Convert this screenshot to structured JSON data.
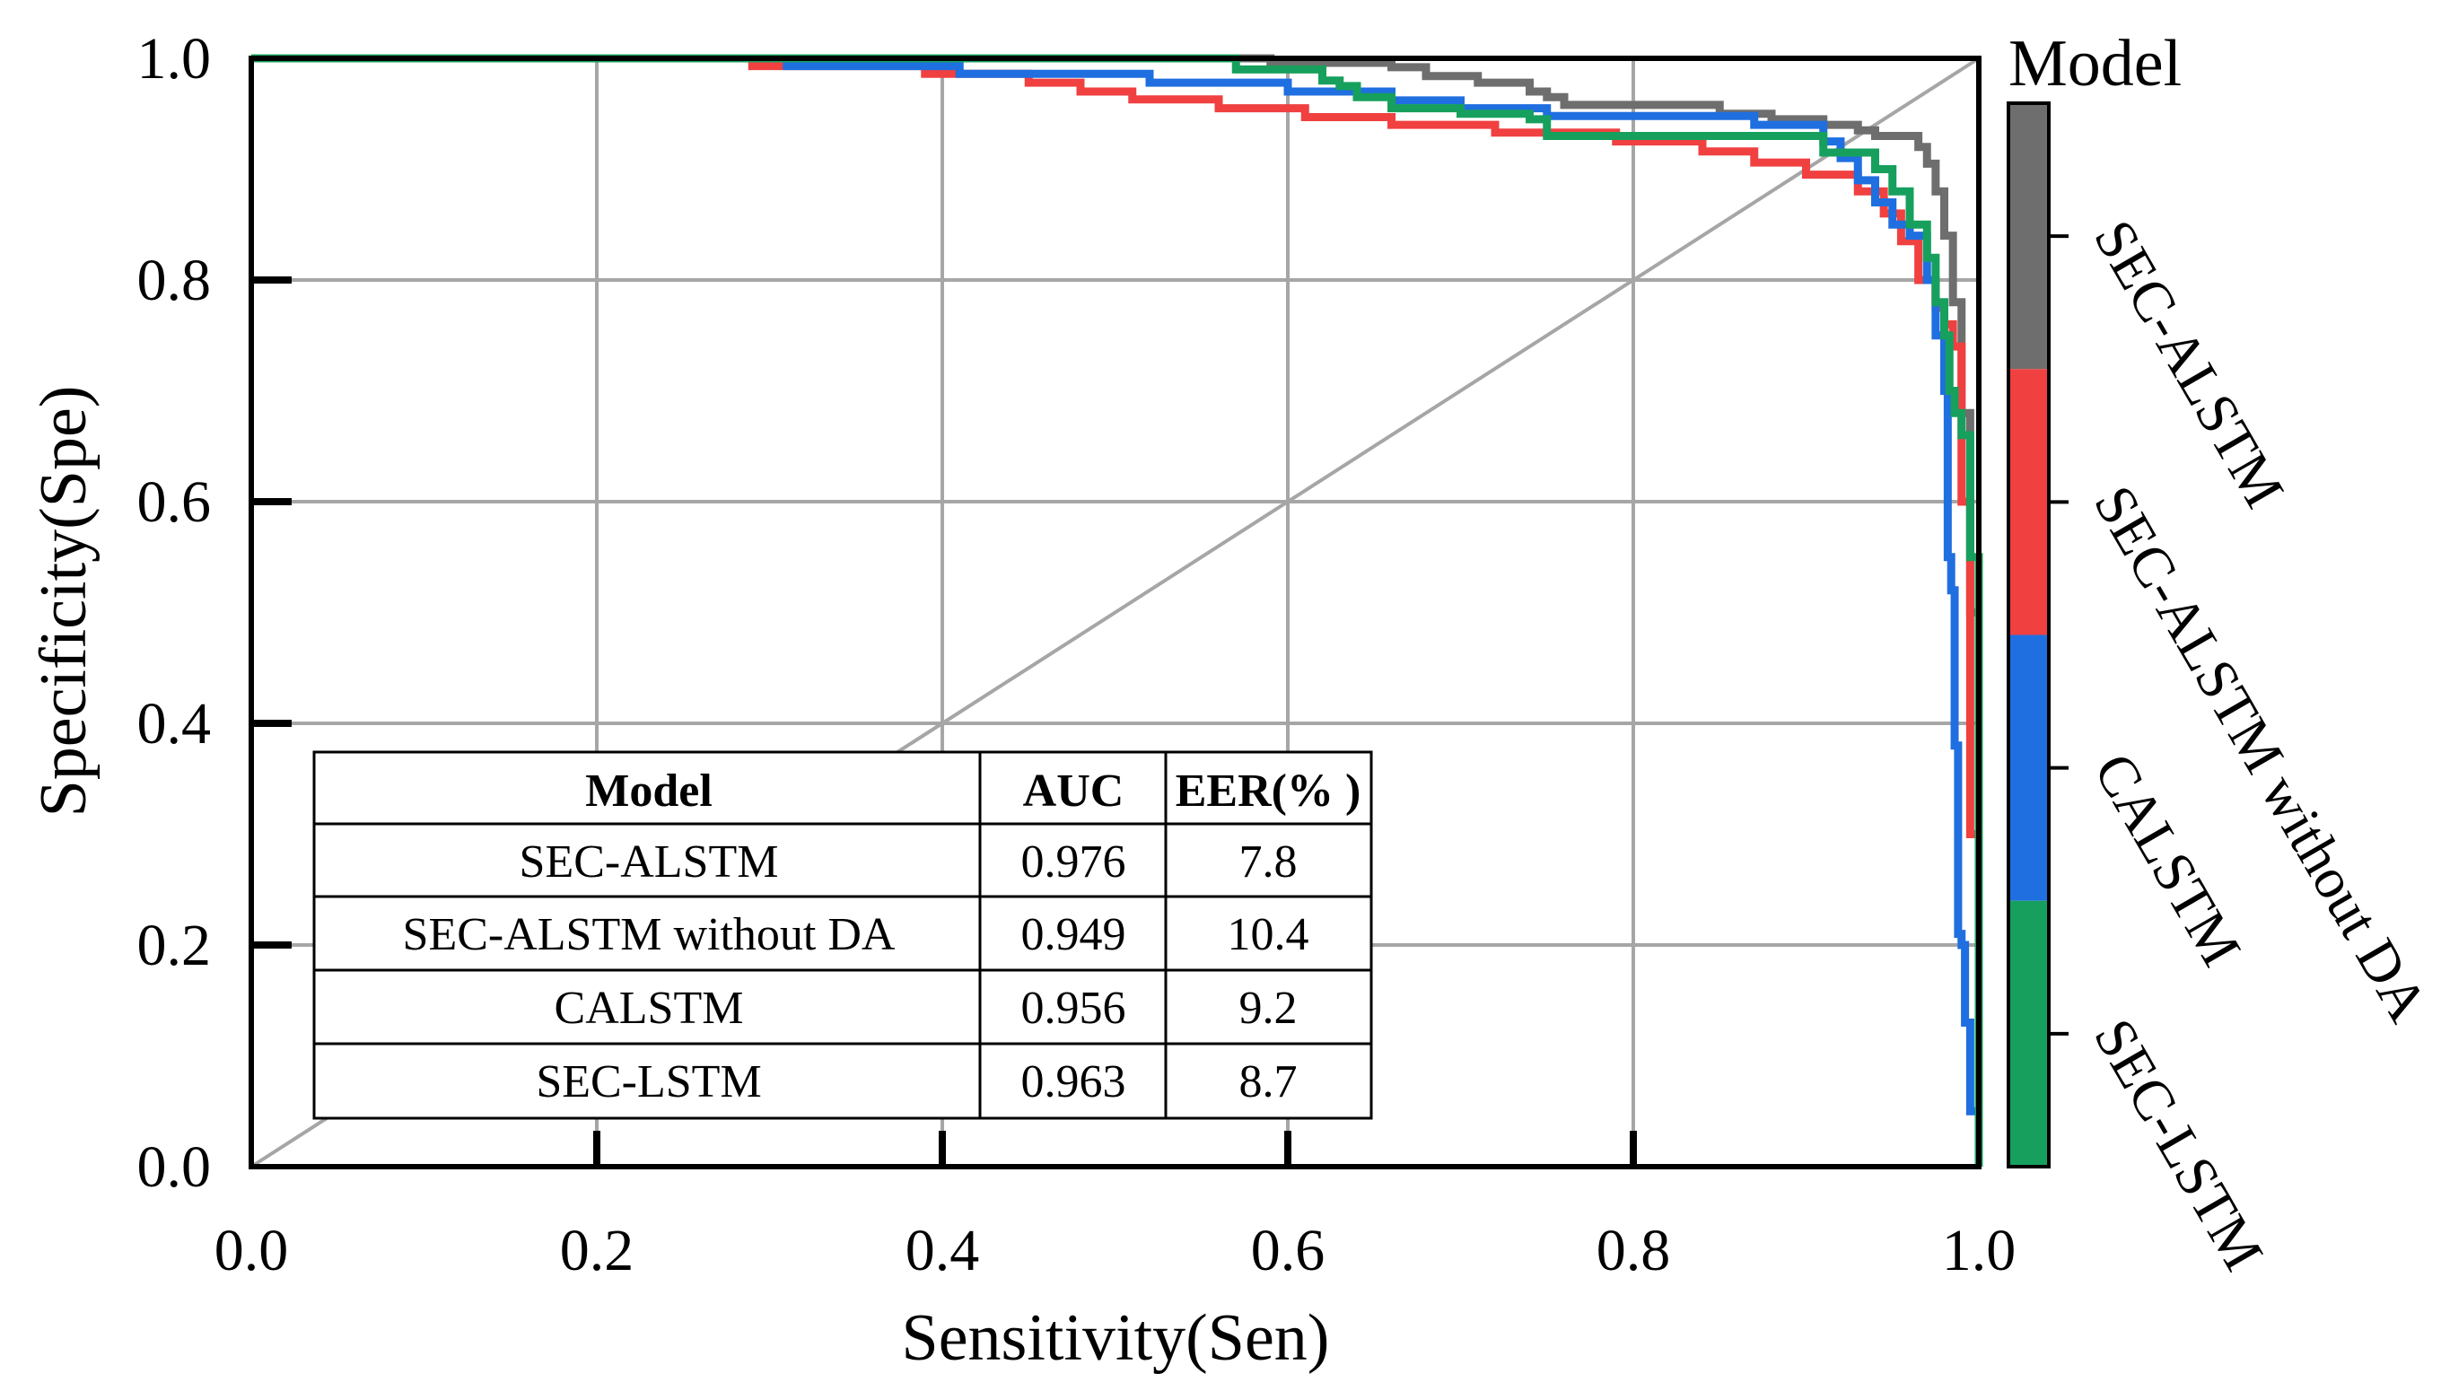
{
  "chart_data": {
    "type": "line",
    "title": "",
    "xlabel": "Sensitivity(Sen)",
    "ylabel": "Specificity(Spe)",
    "xlim": [
      0,
      1
    ],
    "ylim": [
      0,
      1
    ],
    "xticks": [
      "0.0",
      "0.2",
      "0.4",
      "0.6",
      "0.8",
      "1.0"
    ],
    "yticks": [
      "0.0",
      "0.2",
      "0.4",
      "0.6",
      "0.8",
      "1.0"
    ],
    "grid": true,
    "reference_line": {
      "name": "chance diagonal",
      "x": [
        0,
        1
      ],
      "y": [
        0,
        1
      ],
      "color": "#a6a6a6"
    },
    "legend": {
      "title": "Model",
      "placement": "right colorbar",
      "entries": [
        "SEC-ALSTM",
        "SEC-ALSTM without DA",
        "CALSTM",
        "SEC-LSTM"
      ]
    },
    "series": [
      {
        "name": "SEC-ALSTM",
        "color": "#6e6e6e",
        "x": [
          0,
          0.58,
          0.59,
          0.64,
          0.66,
          0.68,
          0.68,
          0.7,
          0.71,
          0.73,
          0.74,
          0.75,
          0.76,
          0.8,
          0.85,
          0.87,
          0.88,
          0.9,
          0.91,
          0.92,
          0.93,
          0.94,
          0.96,
          0.965,
          0.97,
          0.975,
          0.98,
          0.985,
          0.99,
          0.995,
          1.0
        ],
        "y": [
          1.0,
          1.0,
          0.996,
          0.996,
          0.992,
          0.992,
          0.984,
          0.984,
          0.978,
          0.978,
          0.97,
          0.965,
          0.958,
          0.958,
          0.95,
          0.95,
          0.945,
          0.945,
          0.94,
          0.94,
          0.935,
          0.93,
          0.93,
          0.92,
          0.905,
          0.88,
          0.84,
          0.78,
          0.68,
          0.5,
          0.0
        ]
      },
      {
        "name": "SEC-ALSTM without DA",
        "color": "#f04040",
        "x": [
          0,
          0.28,
          0.29,
          0.38,
          0.39,
          0.44,
          0.45,
          0.47,
          0.48,
          0.5,
          0.51,
          0.55,
          0.56,
          0.6,
          0.61,
          0.65,
          0.66,
          0.71,
          0.72,
          0.78,
          0.79,
          0.83,
          0.84,
          0.86,
          0.87,
          0.89,
          0.9,
          0.92,
          0.93,
          0.945,
          0.955,
          0.965,
          0.975,
          0.98,
          0.985,
          0.99,
          0.995,
          1.0
        ],
        "y": [
          1.0,
          1.0,
          0.993,
          0.993,
          0.986,
          0.986,
          0.978,
          0.978,
          0.97,
          0.97,
          0.963,
          0.963,
          0.955,
          0.955,
          0.947,
          0.947,
          0.94,
          0.94,
          0.933,
          0.933,
          0.925,
          0.925,
          0.916,
          0.916,
          0.906,
          0.906,
          0.895,
          0.895,
          0.88,
          0.86,
          0.835,
          0.8,
          0.775,
          0.76,
          0.74,
          0.6,
          0.3,
          0.0
        ]
      },
      {
        "name": "CALSTM",
        "color": "#1f6fe0",
        "x": [
          0,
          0.3,
          0.31,
          0.4,
          0.41,
          0.5,
          0.52,
          0.58,
          0.6,
          0.64,
          0.66,
          0.68,
          0.7,
          0.74,
          0.75,
          0.85,
          0.87,
          0.9,
          0.91,
          0.92,
          0.93,
          0.94,
          0.95,
          0.96,
          0.97,
          0.975,
          0.98,
          0.982,
          0.984,
          0.986,
          0.988,
          0.99,
          0.992,
          0.995,
          1.0
        ],
        "y": [
          1.0,
          1.0,
          0.993,
          0.993,
          0.986,
          0.986,
          0.978,
          0.978,
          0.97,
          0.97,
          0.962,
          0.962,
          0.955,
          0.955,
          0.948,
          0.948,
          0.94,
          0.94,
          0.925,
          0.91,
          0.89,
          0.87,
          0.85,
          0.84,
          0.8,
          0.75,
          0.7,
          0.55,
          0.52,
          0.38,
          0.21,
          0.2,
          0.13,
          0.05,
          0.0
        ]
      },
      {
        "name": "SEC-LSTM",
        "color": "#17a05d",
        "x": [
          0,
          0.55,
          0.57,
          0.6,
          0.62,
          0.63,
          0.64,
          0.66,
          0.7,
          0.74,
          0.75,
          0.9,
          0.91,
          0.94,
          0.95,
          0.96,
          0.97,
          0.975,
          0.98,
          0.983,
          0.986,
          0.99,
          0.995,
          1.0
        ],
        "y": [
          1.0,
          1.0,
          0.99,
          0.99,
          0.98,
          0.975,
          0.965,
          0.955,
          0.95,
          0.945,
          0.93,
          0.93,
          0.915,
          0.9,
          0.88,
          0.85,
          0.82,
          0.78,
          0.75,
          0.7,
          0.68,
          0.66,
          0.55,
          0.0
        ]
      }
    ],
    "table": {
      "headers": [
        "Model",
        "AUC",
        "EER(% )"
      ],
      "rows": [
        [
          "SEC-ALSTM",
          "0.976",
          "7.8"
        ],
        [
          "SEC-ALSTM without DA",
          "0.949",
          "10.4"
        ],
        [
          "CALSTM",
          "0.956",
          "9.2"
        ],
        [
          "SEC-LSTM",
          "0.963",
          "8.7"
        ]
      ]
    }
  }
}
